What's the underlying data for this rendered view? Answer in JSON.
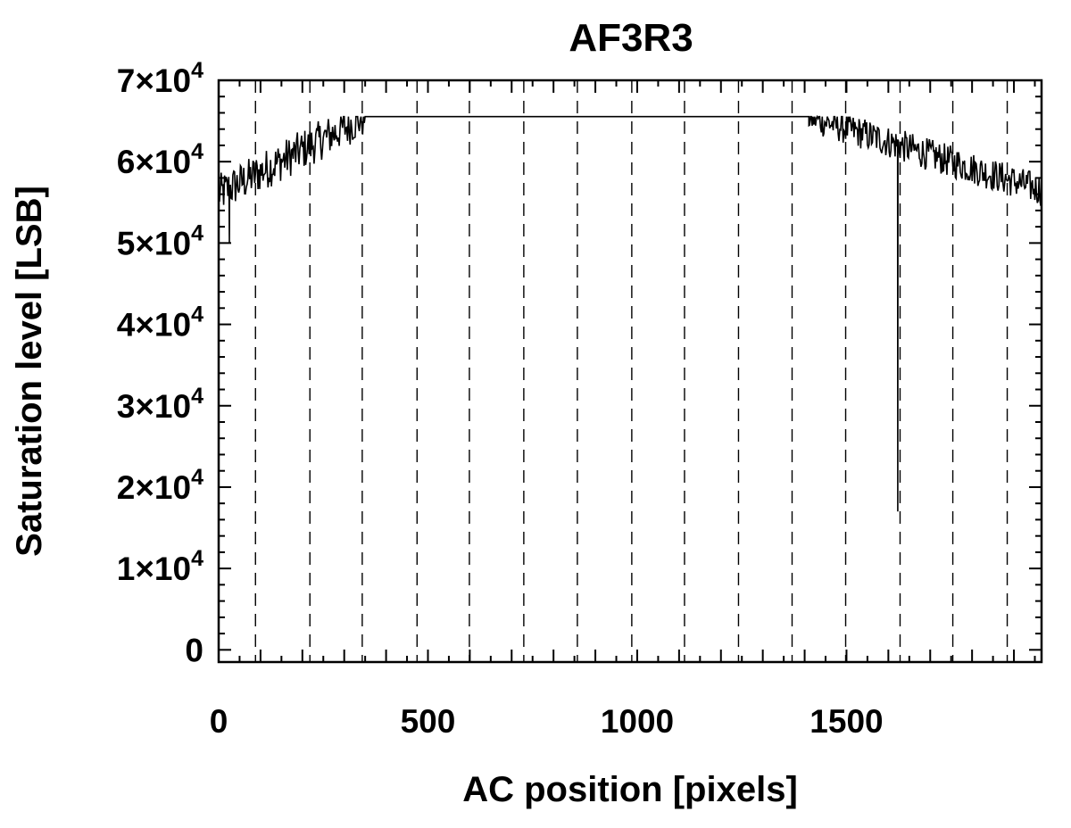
{
  "chart_data": {
    "type": "line",
    "title": "AF3R3",
    "xlabel": "AC position [pixels]",
    "ylabel": "Saturation level [LSB]",
    "xlim": [
      0,
      1966
    ],
    "ylim": [
      -1500,
      70000
    ],
    "grid": false,
    "x_ticks": [
      {
        "value": 0,
        "label": "0"
      },
      {
        "value": 500,
        "label": "500"
      },
      {
        "value": 1000,
        "label": "1000"
      },
      {
        "value": 1500,
        "label": "1500"
      }
    ],
    "x_minor_step": 50,
    "y_ticks": [
      {
        "value": 0,
        "label": "0",
        "sup": ""
      },
      {
        "value": 10000,
        "label": "1×10",
        "sup": "4"
      },
      {
        "value": 20000,
        "label": "2×10",
        "sup": "4"
      },
      {
        "value": 30000,
        "label": "3×10",
        "sup": "4"
      },
      {
        "value": 40000,
        "label": "4×10",
        "sup": "4"
      },
      {
        "value": 50000,
        "label": "5×10",
        "sup": "4"
      },
      {
        "value": 60000,
        "label": "6×10",
        "sup": "4"
      },
      {
        "value": 70000,
        "label": "7×10",
        "sup": "4"
      }
    ],
    "y_minor_step": 2000,
    "vertical_dashed_lines": [
      88,
      218,
      343,
      474,
      599,
      729,
      857,
      987,
      1113,
      1242,
      1370,
      1498,
      1628,
      1754,
      1884
    ],
    "saturation_value": 65535,
    "series": [
      {
        "type": "noisy-profile",
        "segments": [
          {
            "x_start": 0,
            "x_end": 350,
            "y_start": 56000,
            "y_end": 65535,
            "noise": 2500
          },
          {
            "x_start": 350,
            "x_end": 1410,
            "y_start": 65535,
            "y_end": 65535,
            "noise": 0
          },
          {
            "x_start": 1410,
            "x_end": 1966,
            "y_start": 65535,
            "y_end": 56500,
            "noise": 2000
          }
        ],
        "spikes": [
          {
            "x": 25,
            "y": 50000
          },
          {
            "x": 1622,
            "y": 17000
          }
        ]
      }
    ]
  }
}
